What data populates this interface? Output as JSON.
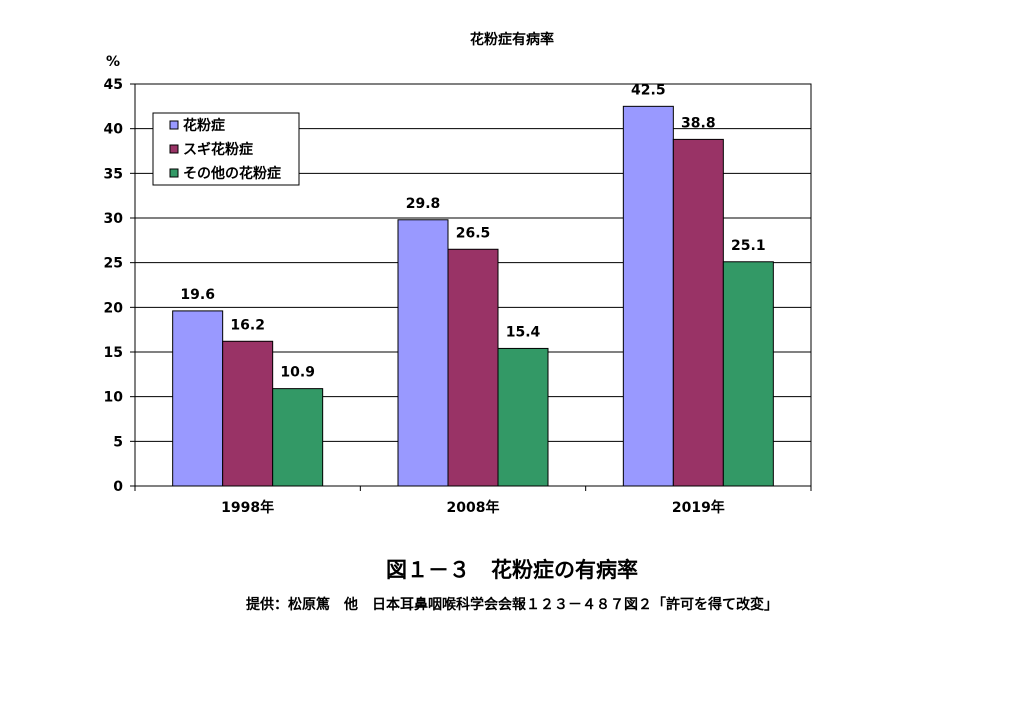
{
  "chart_data": {
    "type": "bar",
    "title": "花粉症有病率",
    "ylabel": "%",
    "xlabel": "",
    "ylim": [
      0,
      45
    ],
    "yticks": [
      0,
      5,
      10,
      15,
      20,
      25,
      30,
      35,
      40,
      45
    ],
    "grid": true,
    "legend_position": "top-left",
    "categories": [
      "1998年",
      "2008年",
      "2019年"
    ],
    "series": [
      {
        "name": "花粉症",
        "color": "#9999ff",
        "values": [
          19.6,
          29.8,
          42.5
        ]
      },
      {
        "name": "スギ花粉症",
        "color": "#993366",
        "values": [
          16.2,
          26.5,
          38.8
        ]
      },
      {
        "name": "その他の花粉症",
        "color": "#339966",
        "values": [
          10.9,
          15.4,
          25.1
        ]
      }
    ]
  },
  "caption": "図１－３　花粉症の有病率",
  "credit": "提供：松原篤　他　日本耳鼻咽喉科学会会報１２３－４８７図２「許可を得て改変」"
}
